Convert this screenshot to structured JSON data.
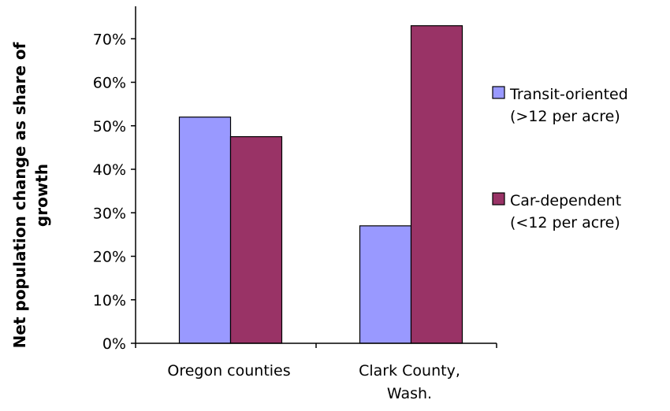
{
  "chart_data": {
    "type": "bar",
    "categories": [
      [
        "Oregon counties"
      ],
      [
        "Clark County,",
        "Wash."
      ]
    ],
    "series": [
      {
        "name": [
          "Transit-oriented",
          "(>12 per acre)"
        ],
        "color": "#9999ff",
        "values": [
          52,
          27
        ]
      },
      {
        "name": [
          "Car-dependent",
          "(<12 per acre)"
        ],
        "color": "#993366",
        "values": [
          47.5,
          73
        ]
      }
    ],
    "ylabel": [
      "Net population change as share of",
      "growth"
    ],
    "ylim": [
      0,
      80
    ],
    "yticks": [
      0,
      10,
      20,
      30,
      40,
      50,
      60,
      70
    ],
    "ytick_labels": [
      "0%",
      "10%",
      "20%",
      "30%",
      "40%",
      "50%",
      "60%",
      "70%"
    ],
    "grid": false,
    "legend_position": "right"
  }
}
